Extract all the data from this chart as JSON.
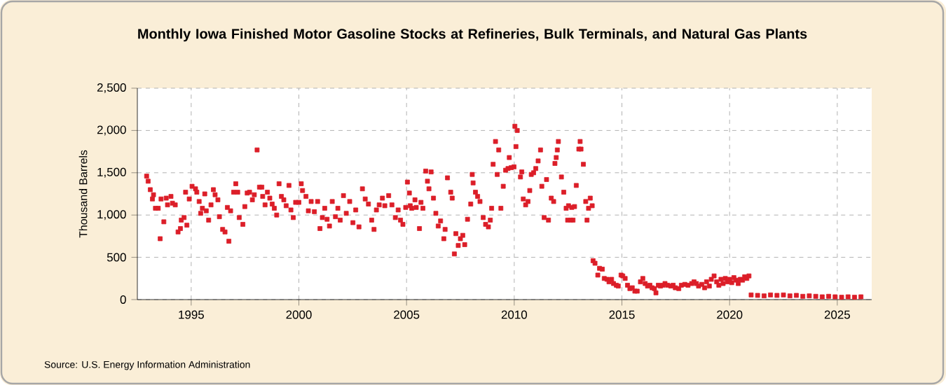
{
  "chart_data": {
    "type": "scatter",
    "title": "Monthly Iowa Finished Motor Gasoline Stocks at Refineries, Bulk Terminals, and Natural Gas Plants",
    "ylabel": "Thousand Barrels",
    "annotations": [
      "Source: U.S. Energy Information Administration"
    ],
    "x": [
      1992.93,
      1993.0,
      1993.1,
      1993.2,
      1993.25,
      1993.34,
      1993.47,
      1993.56,
      1993.6,
      1993.73,
      1993.84,
      1993.9,
      1994.06,
      1994.13,
      1994.26,
      1994.39,
      1994.5,
      1994.54,
      1994.67,
      1994.74,
      1994.8,
      1994.91,
      1995.04,
      1995.2,
      1995.26,
      1995.37,
      1995.44,
      1995.52,
      1995.63,
      1995.7,
      1995.81,
      1995.92,
      1996.03,
      1996.11,
      1996.24,
      1996.31,
      1996.46,
      1996.57,
      1996.68,
      1996.75,
      1996.83,
      1996.97,
      1997.07,
      1997.16,
      1997.23,
      1997.4,
      1997.49,
      1997.6,
      1997.71,
      1997.84,
      1997.93,
      1998.06,
      1998.17,
      1998.28,
      1998.32,
      1998.43,
      1998.54,
      1998.65,
      1998.76,
      1998.86,
      1998.97,
      1999.08,
      1999.19,
      1999.3,
      1999.41,
      1999.54,
      1999.63,
      1999.74,
      1999.85,
      2000.0,
      2000.11,
      2000.17,
      2000.33,
      2000.44,
      2000.57,
      2000.72,
      2000.87,
      2000.98,
      2001.09,
      2001.2,
      2001.31,
      2001.42,
      2001.55,
      2001.7,
      2001.81,
      2001.92,
      2002.07,
      2002.2,
      2002.36,
      2002.51,
      2002.64,
      2002.79,
      2002.95,
      2003.08,
      2003.23,
      2003.38,
      2003.49,
      2003.6,
      2003.73,
      2003.88,
      2003.99,
      2004.17,
      2004.32,
      2004.48,
      2004.61,
      2004.72,
      2004.83,
      2004.96,
      2005.04,
      2005.13,
      2005.17,
      2005.24,
      2005.39,
      2005.45,
      2005.6,
      2005.67,
      2005.76,
      2005.89,
      2005.97,
      2006.04,
      2006.14,
      2006.25,
      2006.36,
      2006.47,
      2006.58,
      2006.73,
      2006.79,
      2006.9,
      2007.05,
      2007.12,
      2007.22,
      2007.29,
      2007.4,
      2007.5,
      2007.61,
      2007.7,
      2007.83,
      2007.98,
      2008.05,
      2008.09,
      2008.2,
      2008.3,
      2008.41,
      2008.56,
      2008.67,
      2008.8,
      2008.89,
      2008.95,
      2009.02,
      2009.13,
      2009.21,
      2009.28,
      2009.38,
      2009.49,
      2009.6,
      2009.71,
      2009.77,
      2009.86,
      2009.99,
      2010.03,
      2010.08,
      2010.14,
      2010.29,
      2010.35,
      2010.42,
      2010.53,
      2010.64,
      2010.72,
      2010.79,
      2010.9,
      2011.0,
      2011.11,
      2011.22,
      2011.28,
      2011.39,
      2011.5,
      2011.59,
      2011.72,
      2011.83,
      2011.89,
      2011.95,
      2012.0,
      2012.05,
      2012.19,
      2012.3,
      2012.41,
      2012.48,
      2012.52,
      2012.63,
      2012.67,
      2012.73,
      2012.8,
      2012.88,
      2013.0,
      2013.06,
      2013.1,
      2013.21,
      2013.32,
      2013.38,
      2013.45,
      2013.53,
      2013.62,
      2013.66,
      2013.75,
      2013.88,
      2013.96,
      2014.09,
      2014.18,
      2014.31,
      2014.4,
      2014.52,
      2014.61,
      2014.74,
      2014.83,
      2014.96,
      2015.04,
      2015.15,
      2015.26,
      2015.37,
      2015.48,
      2015.6,
      2015.71,
      2015.86,
      2015.97,
      2016.08,
      2016.19,
      2016.3,
      2016.4,
      2016.51,
      2016.58,
      2016.69,
      2016.79,
      2016.9,
      2017.0,
      2017.12,
      2017.27,
      2017.38,
      2017.48,
      2017.64,
      2017.76,
      2017.92,
      2018.07,
      2018.24,
      2018.35,
      2018.46,
      2018.56,
      2018.71,
      2018.84,
      2018.93,
      2019.06,
      2019.15,
      2019.28,
      2019.4,
      2019.5,
      2019.6,
      2019.7,
      2019.8,
      2019.9,
      2020.0,
      2020.1,
      2020.2,
      2020.3,
      2020.4,
      2020.5,
      2020.6,
      2020.7,
      2020.8,
      2020.9,
      2021.0,
      2021.3,
      2021.6,
      2021.9,
      2022.2,
      2022.5,
      2022.8,
      2023.1,
      2023.4,
      2023.7,
      2024.0,
      2024.3,
      2024.6,
      2024.9,
      2025.2,
      2025.5,
      2025.8,
      2026.1
    ],
    "values": [
      1460,
      1400,
      1300,
      1190,
      1240,
      1080,
      1080,
      720,
      1190,
      920,
      1200,
      1120,
      1220,
      1140,
      1120,
      800,
      840,
      940,
      970,
      1270,
      880,
      1190,
      1340,
      1310,
      1270,
      1160,
      1020,
      1080,
      1250,
      1050,
      940,
      1120,
      1300,
      1240,
      1180,
      980,
      830,
      800,
      1090,
      690,
      1050,
      1270,
      1370,
      1270,
      970,
      890,
      1100,
      1260,
      1270,
      1180,
      1240,
      1770,
      1330,
      1330,
      1220,
      1120,
      1270,
      1200,
      1130,
      1080,
      1000,
      1370,
      1220,
      1180,
      1110,
      1350,
      1060,
      970,
      1150,
      1150,
      1370,
      1290,
      1220,
      1050,
      1160,
      1040,
      1160,
      840,
      970,
      1080,
      950,
      870,
      1160,
      980,
      1080,
      940,
      1230,
      1020,
      1160,
      910,
      1060,
      860,
      1310,
      1190,
      1130,
      940,
      830,
      1060,
      1120,
      1200,
      1110,
      1230,
      1120,
      970,
      1060,
      940,
      890,
      1090,
      1390,
      1260,
      1110,
      1080,
      1180,
      1090,
      840,
      1150,
      1080,
      1520,
      1400,
      1310,
      1510,
      1200,
      1020,
      870,
      930,
      720,
      830,
      1440,
      1270,
      1200,
      540,
      780,
      640,
      720,
      760,
      650,
      950,
      1130,
      1480,
      1380,
      1270,
      1220,
      1160,
      970,
      890,
      860,
      940,
      1080,
      1600,
      1870,
      1480,
      1770,
      1080,
      1340,
      1530,
      1550,
      1680,
      1560,
      1570,
      2050,
      1810,
      2000,
      1450,
      1510,
      1190,
      1120,
      1160,
      1290,
      1480,
      1500,
      1550,
      1640,
      1770,
      1340,
      970,
      1420,
      940,
      1200,
      1160,
      1610,
      1680,
      1770,
      1870,
      1450,
      1270,
      1080,
      940,
      1110,
      940,
      1090,
      940,
      1100,
      1350,
      1780,
      1870,
      1780,
      1600,
      1160,
      940,
      1080,
      1200,
      1110,
      460,
      430,
      290,
      370,
      360,
      250,
      240,
      210,
      240,
      190,
      170,
      160,
      290,
      280,
      250,
      170,
      130,
      140,
      100,
      100,
      210,
      250,
      190,
      160,
      170,
      140,
      130,
      80,
      170,
      160,
      170,
      190,
      170,
      160,
      170,
      140,
      130,
      170,
      180,
      170,
      190,
      210,
      190,
      160,
      180,
      140,
      210,
      160,
      240,
      280,
      210,
      170,
      240,
      190,
      250,
      210,
      240,
      200,
      260,
      230,
      190,
      240,
      230,
      270,
      250,
      280,
      55,
      50,
      44,
      55,
      50,
      55,
      44,
      50,
      39,
      44,
      39,
      33,
      39,
      33,
      28,
      33,
      28,
      33
    ],
    "color": "#dc1e28",
    "marker": "square",
    "grid": true,
    "xlim": [
      1992.5,
      2026.6
    ],
    "xticks": [
      1995,
      2000,
      2005,
      2010,
      2015,
      2020,
      2025
    ],
    "ylim": [
      0,
      2500
    ],
    "yticks": [
      0,
      500,
      {
        "value": 1000,
        "label": "1,000"
      },
      {
        "value": 1500,
        "label": "1,500"
      },
      {
        "value": 2000,
        "label": "2,000"
      },
      {
        "value": 2500,
        "label": "2,500"
      }
    ]
  }
}
